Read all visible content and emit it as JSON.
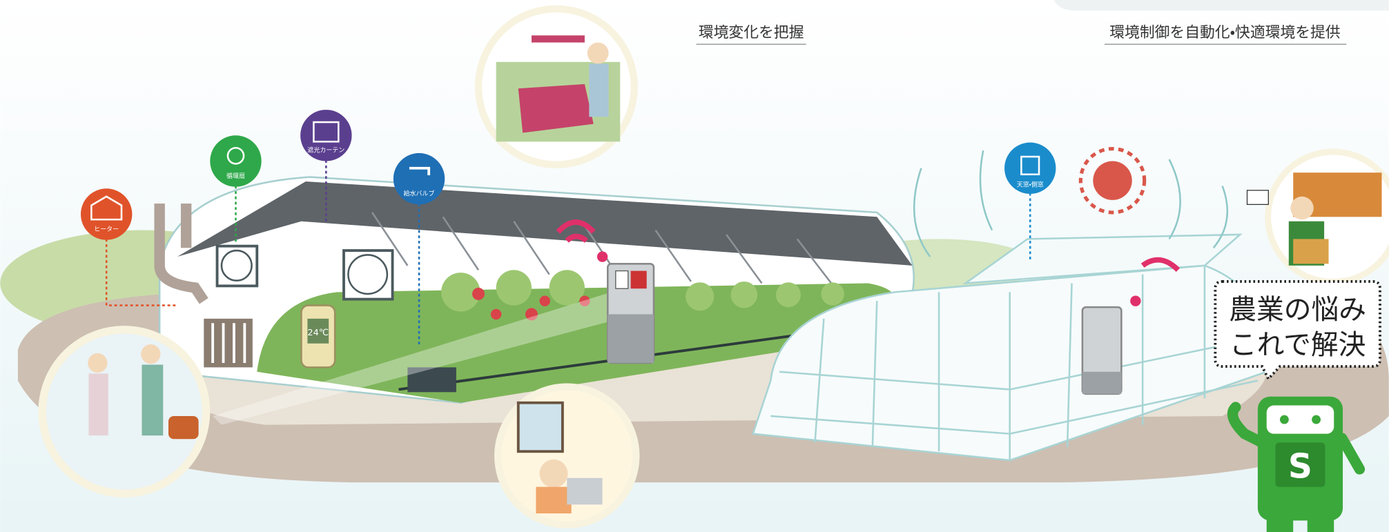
{
  "headings": {
    "left": "環境変化を把握",
    "right": "環境制御を自動化・快適環境を提供"
  },
  "icons": [
    {
      "label": "ヒーター"
    },
    {
      "label": "循環扇"
    },
    {
      "label": "遮光カーテン"
    },
    {
      "label": "給水バルブ"
    },
    {
      "label": "天窓・側窓"
    }
  ],
  "thermometer": {
    "display": "24℃"
  },
  "speech_bubble": {
    "lines": [
      "農業の悩み",
      "これで解決"
    ]
  },
  "robot": {
    "letter": "S"
  }
}
